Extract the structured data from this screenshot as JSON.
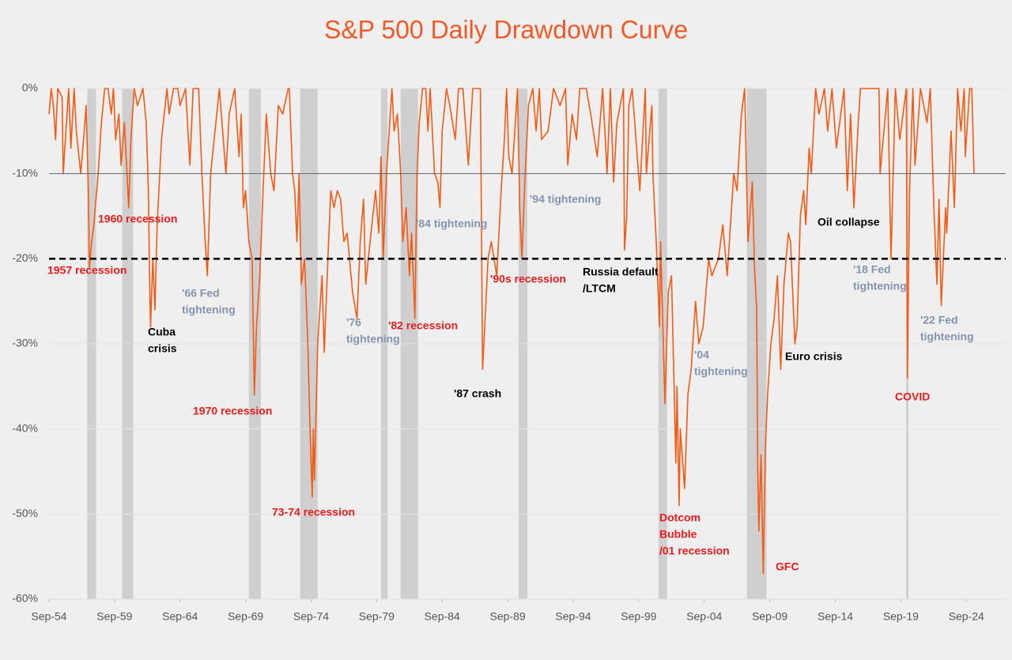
{
  "chart_data": {
    "type": "line",
    "title": "S&P 500 Daily Drawdown Curve",
    "title_color": "#f05a28",
    "color": "#f55a14",
    "grid": true,
    "ylim": [
      -60,
      0
    ],
    "yticks": [
      {
        "value": 0,
        "label": "0%"
      },
      {
        "value": -10,
        "label": "-10%"
      },
      {
        "value": -20,
        "label": "-20%"
      },
      {
        "value": -30,
        "label": "-30%"
      },
      {
        "value": -40,
        "label": "-40%"
      },
      {
        "value": -50,
        "label": "-50%"
      },
      {
        "value": -60,
        "label": "-60%"
      }
    ],
    "xlim": [
      "1954-09",
      "2027-09"
    ],
    "xticks": [
      {
        "value": "1954-09",
        "label": "Sep-54"
      },
      {
        "value": "1959-09",
        "label": "Sep-59"
      },
      {
        "value": "1964-09",
        "label": "Sep-64"
      },
      {
        "value": "1969-09",
        "label": "Sep-69"
      },
      {
        "value": "1974-09",
        "label": "Sep-74"
      },
      {
        "value": "1979-09",
        "label": "Sep-79"
      },
      {
        "value": "1984-09",
        "label": "Sep-84"
      },
      {
        "value": "1989-09",
        "label": "Sep-89"
      },
      {
        "value": "1994-09",
        "label": "Sep-94"
      },
      {
        "value": "1999-09",
        "label": "Sep-99"
      },
      {
        "value": "2004-09",
        "label": "Sep-04"
      },
      {
        "value": "2009-09",
        "label": "Sep-09"
      },
      {
        "value": "2014-09",
        "label": "Sep-14"
      },
      {
        "value": "2019-09",
        "label": "Sep-19"
      },
      {
        "value": "2024-09",
        "label": "Sep-24"
      }
    ],
    "reference_lines": [
      {
        "value": -10,
        "style": "solid",
        "color": "#666666"
      },
      {
        "value": -20,
        "style": "dashed",
        "color": "#000000"
      }
    ],
    "shaded_periods": [
      {
        "start": "1957-08",
        "end": "1958-04"
      },
      {
        "start": "1960-04",
        "end": "1961-02"
      },
      {
        "start": "1969-12",
        "end": "1970-11"
      },
      {
        "start": "1973-11",
        "end": "1975-03"
      },
      {
        "start": "1980-01",
        "end": "1980-07"
      },
      {
        "start": "1981-07",
        "end": "1982-11"
      },
      {
        "start": "1990-07",
        "end": "1991-03"
      },
      {
        "start": "2001-03",
        "end": "2001-11"
      },
      {
        "start": "2007-12",
        "end": "2009-06"
      },
      {
        "start": "2020-02",
        "end": "2020-04"
      }
    ],
    "shade_color": "#cfcfcf",
    "x": [
      "1954-09",
      "1954-11",
      "1955-01",
      "1955-03",
      "1955-05",
      "1955-09",
      "1955-10",
      "1956-01",
      "1956-03",
      "1956-05",
      "1956-08",
      "1956-10",
      "1957-02",
      "1957-04",
      "1957-07",
      "1957-09",
      "1957-10",
      "1957-12",
      "1958-02",
      "1958-06",
      "1958-09",
      "1958-12",
      "1959-03",
      "1959-06",
      "1959-08",
      "1959-10",
      "1960-01",
      "1960-03",
      "1960-06",
      "1960-10",
      "1960-12",
      "1961-03",
      "1961-06",
      "1961-11",
      "1962-02",
      "1962-04",
      "1962-05",
      "1962-06",
      "1962-08",
      "1962-10",
      "1962-12",
      "1963-04",
      "1963-09",
      "1963-11",
      "1964-03",
      "1964-07",
      "1964-09",
      "1965-02",
      "1965-06",
      "1965-09",
      "1966-02",
      "1966-05",
      "1966-08",
      "1966-10",
      "1967-01",
      "1967-05",
      "1967-09",
      "1968-03",
      "1968-06",
      "1968-11",
      "1969-03",
      "1969-05",
      "1969-07",
      "1969-09",
      "1969-12",
      "1970-03",
      "1970-05",
      "1970-07",
      "1970-10",
      "1971-01",
      "1971-04",
      "1971-08",
      "1971-11",
      "1972-03",
      "1972-07",
      "1972-12",
      "1973-01",
      "1973-04",
      "1973-06",
      "1973-08",
      "1973-10",
      "1973-12",
      "1974-03",
      "1974-06",
      "1974-08",
      "1974-10",
      "1974-11",
      "1974-12",
      "1975-03",
      "1975-07",
      "1975-09",
      "1976-01",
      "1976-03",
      "1976-06",
      "1976-09",
      "1976-12",
      "1977-03",
      "1977-06",
      "1977-11",
      "1978-03",
      "1978-06",
      "1978-09",
      "1978-11",
      "1979-03",
      "1979-08",
      "1979-11",
      "1980-01",
      "1980-03",
      "1980-06",
      "1980-09",
      "1980-11",
      "1981-01",
      "1981-04",
      "1981-07",
      "1981-09",
      "1981-12",
      "1982-03",
      "1982-05",
      "1982-08",
      "1982-10",
      "1982-12",
      "1983-03",
      "1983-06",
      "1983-08",
      "1983-10",
      "1984-02",
      "1984-05",
      "1984-07",
      "1984-09",
      "1985-01",
      "1985-04",
      "1985-09",
      "1985-12",
      "1986-04",
      "1986-09",
      "1987-01",
      "1987-08",
      "1987-10",
      "1987-12",
      "1988-03",
      "1988-06",
      "1988-11",
      "1989-03",
      "1989-06",
      "1989-08",
      "1989-10",
      "1990-01",
      "1990-06",
      "1990-08",
      "1990-10",
      "1991-01",
      "1991-04",
      "1991-08",
      "1991-11",
      "1992-02",
      "1992-04",
      "1992-10",
      "1993-03",
      "1993-09",
      "1994-02",
      "1994-04",
      "1994-08",
      "1994-12",
      "1995-03",
      "1995-09",
      "1996-01",
      "1996-07",
      "1996-12",
      "1997-04",
      "1997-07",
      "1997-10",
      "1998-01",
      "1998-07",
      "1998-08",
      "1998-10",
      "1998-12",
      "1999-03",
      "1999-10",
      "2000-03",
      "2000-04",
      "2000-09",
      "2000-10",
      "2001-01",
      "2001-04",
      "2001-05",
      "2001-09",
      "2001-12",
      "2002-03",
      "2002-07",
      "2002-08",
      "2002-10",
      "2002-11",
      "2003-03",
      "2003-06",
      "2003-09",
      "2004-01",
      "2004-04",
      "2004-08",
      "2005-01",
      "2005-04",
      "2005-10",
      "2006-02",
      "2006-06",
      "2006-12",
      "2007-03",
      "2007-07",
      "2007-10",
      "2008-01",
      "2008-05",
      "2008-07",
      "2008-09",
      "2008-10",
      "2008-11",
      "2009-01",
      "2009-03",
      "2009-05",
      "2009-07",
      "2009-10",
      "2010-01",
      "2010-04",
      "2010-07",
      "2010-10",
      "2011-02",
      "2011-04",
      "2011-08",
      "2011-10",
      "2012-01",
      "2012-04",
      "2012-06",
      "2012-09",
      "2012-11",
      "2013-03",
      "2013-06",
      "2013-11",
      "2014-02",
      "2014-06",
      "2014-10",
      "2015-05",
      "2015-08",
      "2015-11",
      "2016-02",
      "2016-06",
      "2016-08",
      "2017-06",
      "2018-01",
      "2018-02",
      "2018-09",
      "2018-12",
      "2019-04",
      "2019-08",
      "2020-02",
      "2020-03",
      "2020-05",
      "2020-08",
      "2020-10",
      "2021-03",
      "2021-09",
      "2021-12",
      "2022-03",
      "2022-06",
      "2022-08",
      "2022-10",
      "2023-02",
      "2023-03",
      "2023-07",
      "2023-10",
      "2024-01",
      "2024-04",
      "2024-07",
      "2024-08",
      "2024-12",
      "2025-02",
      "2025-04"
    ],
    "values": [
      -3,
      0,
      -2,
      -6,
      0,
      -1,
      -10,
      -4,
      0,
      -7,
      0,
      -5,
      -10,
      -7,
      -2,
      -12,
      -21,
      -18,
      -16,
      -10,
      -4,
      0,
      0,
      -3,
      0,
      -6,
      -3,
      -9,
      -4,
      -14,
      -6,
      0,
      -2,
      0,
      -4,
      -12,
      -22,
      -28,
      -20,
      -26,
      -16,
      -6,
      0,
      -3,
      0,
      0,
      -2,
      0,
      -9,
      0,
      0,
      -10,
      -18,
      -22,
      -10,
      -5,
      0,
      -10,
      -3,
      0,
      -8,
      -3,
      -14,
      -12,
      -18,
      -20,
      -36,
      -28,
      -22,
      -12,
      -3,
      -10,
      -12,
      -2,
      -3,
      0,
      0,
      -10,
      -12,
      -18,
      -10,
      -23,
      -20,
      -30,
      -40,
      -48,
      -40,
      -46,
      -30,
      -22,
      -31,
      -18,
      -12,
      -14,
      -12,
      -13,
      -18,
      -17,
      -24,
      -27,
      -18,
      -13,
      -23,
      -18,
      -12,
      -17,
      -8,
      -20,
      -10,
      -4,
      0,
      -5,
      -3,
      -10,
      -18,
      -14,
      -22,
      -17,
      -27,
      -10,
      -4,
      0,
      0,
      -5,
      0,
      -10,
      -11,
      -14,
      -5,
      0,
      -2,
      -6,
      0,
      0,
      -9,
      0,
      0,
      -33,
      -28,
      -20,
      -18,
      -22,
      -12,
      -6,
      0,
      -8,
      -10,
      0,
      -14,
      -20,
      -10,
      -2,
      0,
      -5,
      0,
      -6,
      -5,
      0,
      -2,
      0,
      -9,
      -3,
      -6,
      0,
      0,
      -3,
      -8,
      0,
      -10,
      0,
      -11,
      -4,
      0,
      -19,
      -15,
      -2,
      0,
      -12,
      0,
      -10,
      -2,
      -10,
      -18,
      -28,
      -18,
      -37,
      -24,
      -22,
      -44,
      -35,
      -49,
      -40,
      -47,
      -36,
      -33,
      -25,
      -30,
      -28,
      -20,
      -22,
      -20,
      -16,
      -22,
      -10,
      -12,
      -3,
      0,
      -18,
      -11,
      -21,
      -26,
      -45,
      -52,
      -43,
      -57,
      -42,
      -36,
      -30,
      -27,
      -22,
      -33,
      -23,
      -17,
      -18,
      -30,
      -28,
      -15,
      -12,
      -16,
      -7,
      -10,
      0,
      -3,
      0,
      -5,
      0,
      -7,
      0,
      -12,
      -3,
      -14,
      -4,
      0,
      0,
      0,
      -10,
      0,
      -20,
      0,
      -6,
      0,
      -34,
      -12,
      0,
      -9,
      0,
      -4,
      0,
      -13,
      -23,
      -13,
      -25.5,
      -14,
      -17,
      -5,
      -14,
      0,
      -5,
      0,
      -8,
      0,
      0,
      -10
    ],
    "annotations": [
      {
        "lines": [
          "1960 recession"
        ],
        "color": "#e81c1c"
      },
      {
        "lines": [
          "1957 recession"
        ],
        "color": "#e81c1c"
      },
      {
        "lines": [
          "Cuba",
          "crisis"
        ],
        "color": "#000000"
      },
      {
        "lines": [
          "'66 Fed",
          "tightening"
        ],
        "color": "#8494b0"
      },
      {
        "lines": [
          "1970 recession"
        ],
        "color": "#e81c1c"
      },
      {
        "lines": [
          "73-74 recession"
        ],
        "color": "#e81c1c"
      },
      {
        "lines": [
          "'76",
          "tightening"
        ],
        "color": "#8494b0"
      },
      {
        "lines": [
          "'82 recession"
        ],
        "color": "#e81c1c"
      },
      {
        "lines": [
          "'84 tightening"
        ],
        "color": "#8494b0"
      },
      {
        "lines": [
          "'87 crash"
        ],
        "color": "#000000"
      },
      {
        "lines": [
          "'90s recession"
        ],
        "color": "#e81c1c"
      },
      {
        "lines": [
          "'94 tightening"
        ],
        "color": "#8494b0"
      },
      {
        "lines": [
          "Russia default",
          "/LTCM"
        ],
        "color": "#000000"
      },
      {
        "lines": [
          "Dotcom",
          "Bubble",
          "/01 recession"
        ],
        "color": "#e81c1c"
      },
      {
        "lines": [
          "'04",
          "tightening"
        ],
        "color": "#8494b0"
      },
      {
        "lines": [
          "GFC"
        ],
        "color": "#e81c1c"
      },
      {
        "lines": [
          "Euro crisis"
        ],
        "color": "#000000"
      },
      {
        "lines": [
          "Oil collapse"
        ],
        "color": "#000000"
      },
      {
        "lines": [
          "'18 Fed",
          "tightening"
        ],
        "color": "#8494b0"
      },
      {
        "lines": [
          "COVID"
        ],
        "color": "#e81c1c"
      },
      {
        "lines": [
          "'22 Fed",
          "tightening"
        ],
        "color": "#8494b0"
      }
    ]
  }
}
